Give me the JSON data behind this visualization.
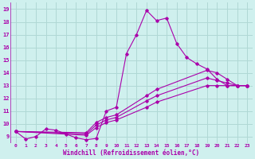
{
  "xlabel": "Windchill (Refroidissement éolien,°C)",
  "background_color": "#cff0ee",
  "grid_color": "#b0d8d5",
  "line_color": "#aa00aa",
  "xlim": [
    -0.5,
    23.5
  ],
  "ylim": [
    8.5,
    19.5
  ],
  "yticks": [
    9,
    10,
    11,
    12,
    13,
    14,
    15,
    16,
    17,
    18,
    19
  ],
  "xticks": [
    0,
    1,
    2,
    3,
    4,
    5,
    6,
    7,
    8,
    9,
    10,
    11,
    12,
    13,
    14,
    15,
    16,
    17,
    18,
    19,
    20,
    21,
    22,
    23
  ],
  "series": [
    {
      "x": [
        0,
        1,
        2,
        3,
        4,
        5,
        6,
        7,
        8,
        9,
        10,
        11,
        12,
        13,
        14,
        15,
        16,
        17,
        18,
        19,
        20,
        21,
        22,
        23
      ],
      "y": [
        9.4,
        8.8,
        9.0,
        9.6,
        9.5,
        9.2,
        8.9,
        8.75,
        8.85,
        11.0,
        11.3,
        15.5,
        17.0,
        18.9,
        18.1,
        18.3,
        16.3,
        15.2,
        14.7,
        14.3,
        13.5,
        13.0,
        13.0,
        13.0
      ]
    },
    {
      "x": [
        0,
        7,
        8,
        9,
        10,
        13,
        14,
        19,
        20,
        21,
        22,
        23
      ],
      "y": [
        9.4,
        9.3,
        10.1,
        10.5,
        10.7,
        12.2,
        12.7,
        14.2,
        14.0,
        13.5,
        13.0,
        13.0
      ]
    },
    {
      "x": [
        0,
        7,
        8,
        9,
        10,
        13,
        14,
        19,
        20,
        21,
        22,
        23
      ],
      "y": [
        9.4,
        9.2,
        9.9,
        10.3,
        10.5,
        11.8,
        12.2,
        13.6,
        13.4,
        13.2,
        13.0,
        13.0
      ]
    },
    {
      "x": [
        0,
        7,
        8,
        9,
        10,
        13,
        14,
        19,
        20,
        21,
        22,
        23
      ],
      "y": [
        9.4,
        9.1,
        9.7,
        10.1,
        10.3,
        11.3,
        11.7,
        13.0,
        13.0,
        13.0,
        13.0,
        13.0
      ]
    }
  ]
}
